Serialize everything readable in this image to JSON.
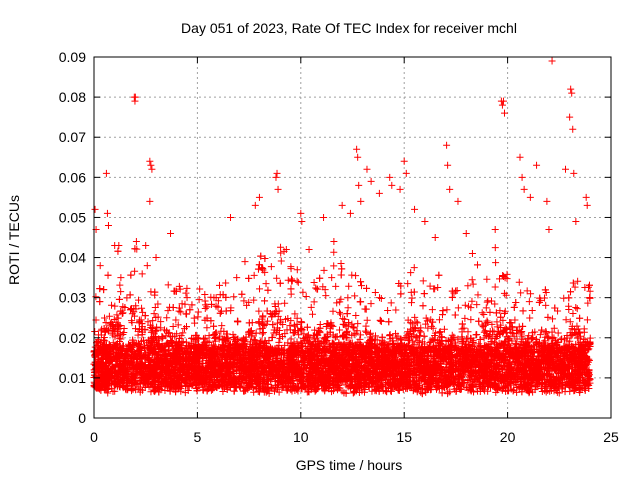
{
  "chart_data": {
    "type": "scatter",
    "title": "Day 051 of 2023, Rate Of TEC Index for receiver mchl",
    "xlabel": "GPS time / hours",
    "ylabel": "ROTI / TECUs",
    "xlim": [
      0,
      25
    ],
    "ylim": [
      0,
      0.09
    ],
    "xticks": [
      0,
      5,
      10,
      15,
      20,
      25
    ],
    "yticks": [
      0,
      0.01,
      0.02,
      0.03,
      0.04,
      0.05,
      0.06,
      0.07,
      0.08,
      0.09
    ],
    "xtick_labels": [
      "0",
      "5",
      "10",
      "15",
      "20",
      "25"
    ],
    "ytick_labels": [
      "0",
      "0.01",
      "0.02",
      "0.03",
      "0.04",
      "0.05",
      "0.06",
      "0.07",
      "0.08",
      "0.09"
    ],
    "grid": true,
    "marker": "+",
    "marker_color": "#ff0000",
    "point_count_approx": 9000,
    "points": [
      [
        0.05,
        0.052
      ],
      [
        0.1,
        0.047
      ],
      [
        0.3,
        0.038
      ],
      [
        0.6,
        0.061
      ],
      [
        0.65,
        0.051
      ],
      [
        0.7,
        0.048
      ],
      [
        1.0,
        0.043
      ],
      [
        1.2,
        0.043
      ],
      [
        1.3,
        0.035
      ],
      [
        1.95,
        0.08
      ],
      [
        1.98,
        0.079
      ],
      [
        2.0,
        0.08
      ],
      [
        2.05,
        0.044
      ],
      [
        2.5,
        0.043
      ],
      [
        2.7,
        0.064
      ],
      [
        2.75,
        0.063
      ],
      [
        2.8,
        0.062
      ],
      [
        2.7,
        0.054
      ],
      [
        3.0,
        0.04
      ],
      [
        3.7,
        0.046
      ],
      [
        4.5,
        0.03
      ],
      [
        5.8,
        0.03
      ],
      [
        6.6,
        0.05
      ],
      [
        6.9,
        0.035
      ],
      [
        7.3,
        0.039
      ],
      [
        7.8,
        0.053
      ],
      [
        8.0,
        0.055
      ],
      [
        8.8,
        0.06
      ],
      [
        8.85,
        0.061
      ],
      [
        8.9,
        0.057
      ],
      [
        9.3,
        0.042
      ],
      [
        10.0,
        0.051
      ],
      [
        10.05,
        0.049
      ],
      [
        10.4,
        0.042
      ],
      [
        11.1,
        0.05
      ],
      [
        11.6,
        0.044
      ],
      [
        12.0,
        0.053
      ],
      [
        12.4,
        0.051
      ],
      [
        12.7,
        0.067
      ],
      [
        12.75,
        0.065
      ],
      [
        12.8,
        0.058
      ],
      [
        12.9,
        0.054
      ],
      [
        13.2,
        0.062
      ],
      [
        13.4,
        0.059
      ],
      [
        13.8,
        0.056
      ],
      [
        14.3,
        0.06
      ],
      [
        14.4,
        0.058
      ],
      [
        14.8,
        0.057
      ],
      [
        15.0,
        0.064
      ],
      [
        15.1,
        0.061
      ],
      [
        15.5,
        0.052
      ],
      [
        16.0,
        0.049
      ],
      [
        16.5,
        0.045
      ],
      [
        17.05,
        0.068
      ],
      [
        17.1,
        0.063
      ],
      [
        17.2,
        0.057
      ],
      [
        17.6,
        0.054
      ],
      [
        18.0,
        0.046
      ],
      [
        18.3,
        0.041
      ],
      [
        19.4,
        0.047
      ],
      [
        19.7,
        0.079
      ],
      [
        19.75,
        0.078
      ],
      [
        19.8,
        0.079
      ],
      [
        19.85,
        0.076
      ],
      [
        20.6,
        0.065
      ],
      [
        20.7,
        0.06
      ],
      [
        20.8,
        0.057
      ],
      [
        21.1,
        0.055
      ],
      [
        21.4,
        0.063
      ],
      [
        21.9,
        0.054
      ],
      [
        22.0,
        0.047
      ],
      [
        22.15,
        0.089
      ],
      [
        22.8,
        0.062
      ],
      [
        23.0,
        0.075
      ],
      [
        23.05,
        0.082
      ],
      [
        23.1,
        0.081
      ],
      [
        23.15,
        0.072
      ],
      [
        23.2,
        0.061
      ],
      [
        23.3,
        0.049
      ],
      [
        23.8,
        0.055
      ],
      [
        23.85,
        0.053
      ]
    ]
  }
}
